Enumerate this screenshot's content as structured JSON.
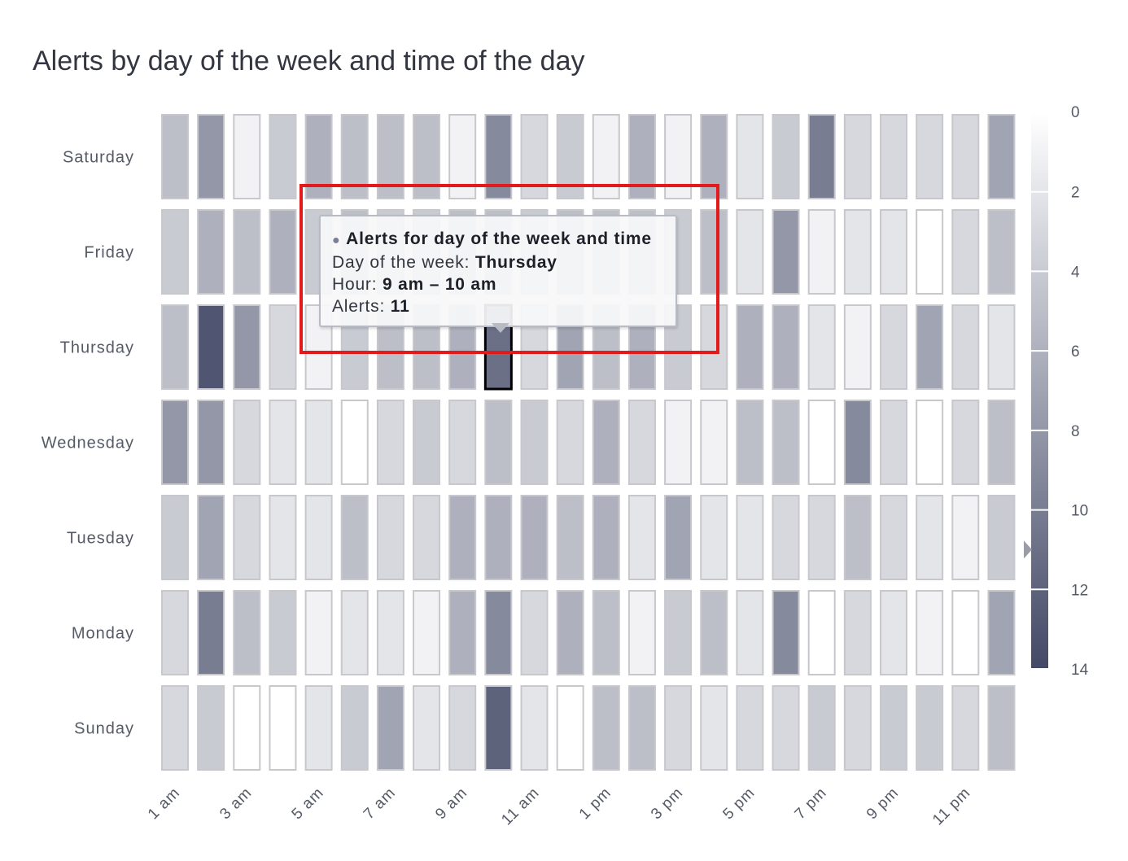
{
  "title": "Alerts by day of the week and time of the day",
  "chart_data": {
    "type": "heatmap",
    "title": "Alerts by day of the week and time of the day",
    "rows": [
      "Saturday",
      "Friday",
      "Thursday",
      "Wednesday",
      "Tuesday",
      "Monday",
      "Sunday"
    ],
    "x_tick_labels": [
      "1 am",
      "3 am",
      "5 am",
      "7 am",
      "9 am",
      "11 am",
      "1 pm",
      "3 pm",
      "5 pm",
      "7 pm",
      "9 pm",
      "11 pm"
    ],
    "columns_count_note_free": true,
    "values": [
      [
        5,
        8,
        1,
        4,
        6,
        5,
        5,
        5,
        1,
        9,
        3,
        4,
        1,
        6,
        1,
        6,
        2,
        4,
        10,
        3,
        3,
        3,
        3,
        7
      ],
      [
        4,
        6,
        5,
        6,
        4,
        5,
        4,
        4,
        5,
        5,
        4,
        5,
        5,
        5,
        4,
        5,
        2,
        8,
        1,
        2,
        2,
        0,
        3,
        5
      ],
      [
        5,
        13,
        8,
        3,
        1,
        4,
        5,
        5,
        6,
        11,
        3,
        7,
        5,
        6,
        4,
        3,
        6,
        6,
        2,
        1,
        3,
        7,
        3,
        2
      ],
      [
        8,
        8,
        3,
        2,
        2,
        0,
        3,
        4,
        3,
        5,
        4,
        3,
        6,
        3,
        1,
        1,
        5,
        5,
        0,
        9,
        3,
        0,
        3,
        5
      ],
      [
        4,
        7,
        3,
        2,
        2,
        5,
        3,
        3,
        6,
        6,
        6,
        5,
        6,
        2,
        7,
        2,
        2,
        3,
        3,
        5,
        3,
        2,
        1,
        4
      ],
      [
        3,
        10,
        5,
        4,
        1,
        2,
        2,
        1,
        6,
        9,
        3,
        6,
        5,
        1,
        4,
        5,
        2,
        9,
        0,
        3,
        2,
        1,
        0,
        7
      ],
      [
        3,
        4,
        0,
        0,
        2,
        4,
        7,
        2,
        3,
        12,
        2,
        0,
        5,
        5,
        3,
        2,
        3,
        3,
        4,
        3,
        4,
        4,
        3,
        5
      ]
    ],
    "color_scale": {
      "min": 0,
      "max": 14,
      "min_color": "#ffffff",
      "max_color": "#434966"
    },
    "legend": {
      "ticks": [
        "0",
        "2",
        "4",
        "6",
        "8",
        "10",
        "12",
        "14"
      ],
      "position": "right",
      "marker_value": 11
    },
    "highlighted_cell": {
      "row": "Thursday",
      "column_index": 9
    }
  },
  "tooltip": {
    "bullet": "●",
    "series_title": "Alerts for day of the week and time",
    "day_label": "Day of the week: ",
    "day_value": "Thursday",
    "hour_label": "Hour: ",
    "hour_value": "9 am – 10 am",
    "alerts_label": "Alerts: ",
    "alerts_value": "11"
  },
  "colors": {
    "highlight_border": "#e31a1c",
    "cell_border": "#c8c8cc",
    "selected_cell_border": "#000000"
  }
}
